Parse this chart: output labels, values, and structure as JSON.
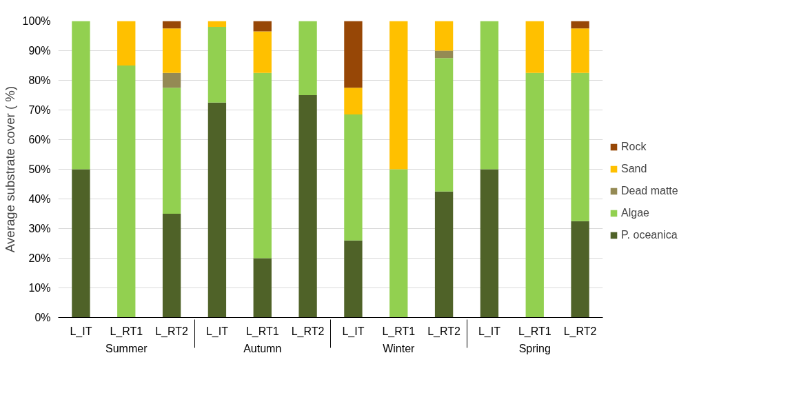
{
  "chart_data": {
    "type": "bar",
    "stacked": true,
    "ylabel": "Average substrate cover ( %)",
    "categories": [
      "L_IT",
      "L_RT1",
      "L_RT2",
      "L_IT",
      "L_RT1",
      "L_RT2",
      "L_IT",
      "L_RT1",
      "L_RT2",
      "L_IT",
      "L_RT1",
      "L_RT2"
    ],
    "annotations": [
      "Summer",
      "Autumn",
      "Winter",
      "Spring"
    ],
    "series": [
      {
        "name": "P. oceanica",
        "color": "#4f6228",
        "values": [
          50,
          0,
          35,
          72.5,
          20,
          75,
          26,
          0,
          42.5,
          50,
          0,
          32.5
        ]
      },
      {
        "name": "Algae",
        "color": "#92d050",
        "values": [
          50,
          85,
          42.5,
          25.5,
          62.5,
          25,
          42.5,
          50,
          45,
          50,
          82.5,
          50
        ]
      },
      {
        "name": "Dead matte",
        "color": "#948a54",
        "values": [
          0,
          0,
          5,
          0,
          0,
          0,
          0,
          0,
          2.5,
          0,
          0,
          0
        ]
      },
      {
        "name": "Sand",
        "color": "#ffc000",
        "values": [
          0,
          15,
          15,
          2,
          14,
          0,
          9,
          50,
          10,
          0,
          17.5,
          15
        ]
      },
      {
        "name": "Rock",
        "color": "#974706",
        "values": [
          0,
          0,
          2.5,
          0,
          3.5,
          0,
          22.5,
          0,
          0,
          0,
          0,
          2.5
        ]
      }
    ],
    "ylim": [
      0,
      100
    ],
    "yticks": [
      {
        "value": 0,
        "label": "0%"
      },
      {
        "value": 10,
        "label": "10%"
      },
      {
        "value": 20,
        "label": "20%"
      },
      {
        "value": 30,
        "label": "30%"
      },
      {
        "value": 40,
        "label": "40%"
      },
      {
        "value": 50,
        "label": "50%"
      },
      {
        "value": 60,
        "label": "60%"
      },
      {
        "value": 70,
        "label": "70%"
      },
      {
        "value": 80,
        "label": "80%"
      },
      {
        "value": 90,
        "label": "90%"
      },
      {
        "value": 100,
        "label": "100%"
      }
    ],
    "grid": "y",
    "legend": "right"
  }
}
